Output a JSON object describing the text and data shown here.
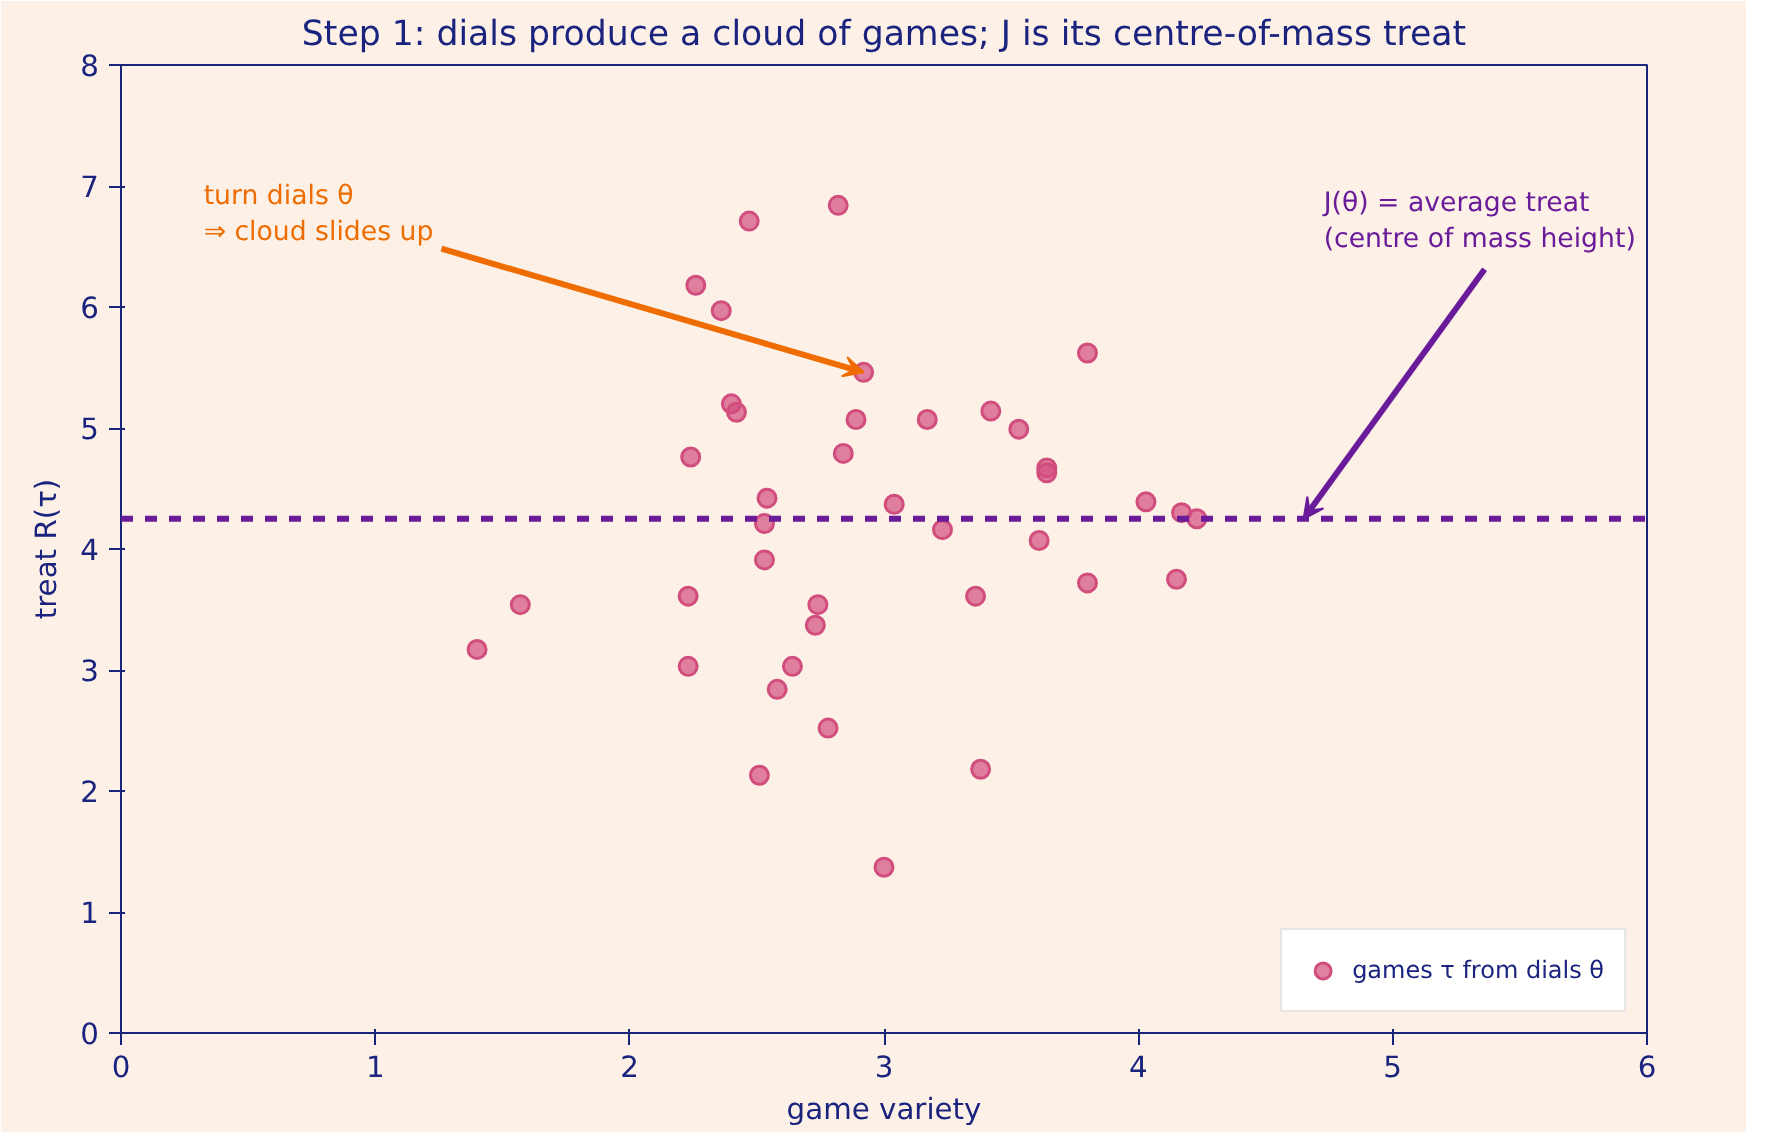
{
  "chart_data": {
    "type": "scatter",
    "title": "Step 1: dials produce a cloud of games; J is its centre-of-mass treat",
    "xlabel": "game variety",
    "ylabel": "treat R(τ)",
    "xlim": [
      0,
      6
    ],
    "ylim": [
      0,
      8
    ],
    "xticks": [
      0,
      1,
      2,
      3,
      4,
      5,
      6
    ],
    "yticks": [
      0,
      1,
      2,
      3,
      4,
      5,
      6,
      7,
      8
    ],
    "grid": false,
    "legend": "bottom right",
    "marker": "circle",
    "series": [
      {
        "name": "games τ from dials θ",
        "color": "#d14d7d",
        "x": [
          1.4,
          1.57,
          2.23,
          2.23,
          2.24,
          2.26,
          2.36,
          2.4,
          2.42,
          2.47,
          2.82,
          2.51,
          2.53,
          2.54,
          2.53,
          2.58,
          2.64,
          2.73,
          2.74,
          2.78,
          2.84,
          2.89,
          2.92,
          3.0,
          3.04,
          3.17,
          3.23,
          3.36,
          3.38,
          3.42,
          3.53,
          3.61,
          3.64,
          3.64,
          3.8,
          3.8,
          4.03,
          4.15,
          4.17,
          4.23
        ],
        "values": [
          3.17,
          3.54,
          3.03,
          3.61,
          4.76,
          6.18,
          5.97,
          5.2,
          5.13,
          6.71,
          6.84,
          2.13,
          3.91,
          4.42,
          4.21,
          2.84,
          3.03,
          3.37,
          3.54,
          2.52,
          4.79,
          5.07,
          5.46,
          1.37,
          4.37,
          5.07,
          4.16,
          3.61,
          2.18,
          5.14,
          4.99,
          4.07,
          4.67,
          4.63,
          5.62,
          3.72,
          4.39,
          3.75,
          4.3,
          4.25
        ]
      }
    ],
    "ref_lines": [
      {
        "axis": "y",
        "value": 4.25,
        "color": "#6a1b9a",
        "line_style": "dashed"
      }
    ],
    "annotations": [
      {
        "text": "turn dials θ\n⇒ cloud slides up",
        "x": 2.92,
        "y": 5.46
      },
      {
        "text": "J(θ) = average treat\n(centre of mass height)",
        "x": 4.65,
        "y": 4.25
      }
    ]
  }
}
